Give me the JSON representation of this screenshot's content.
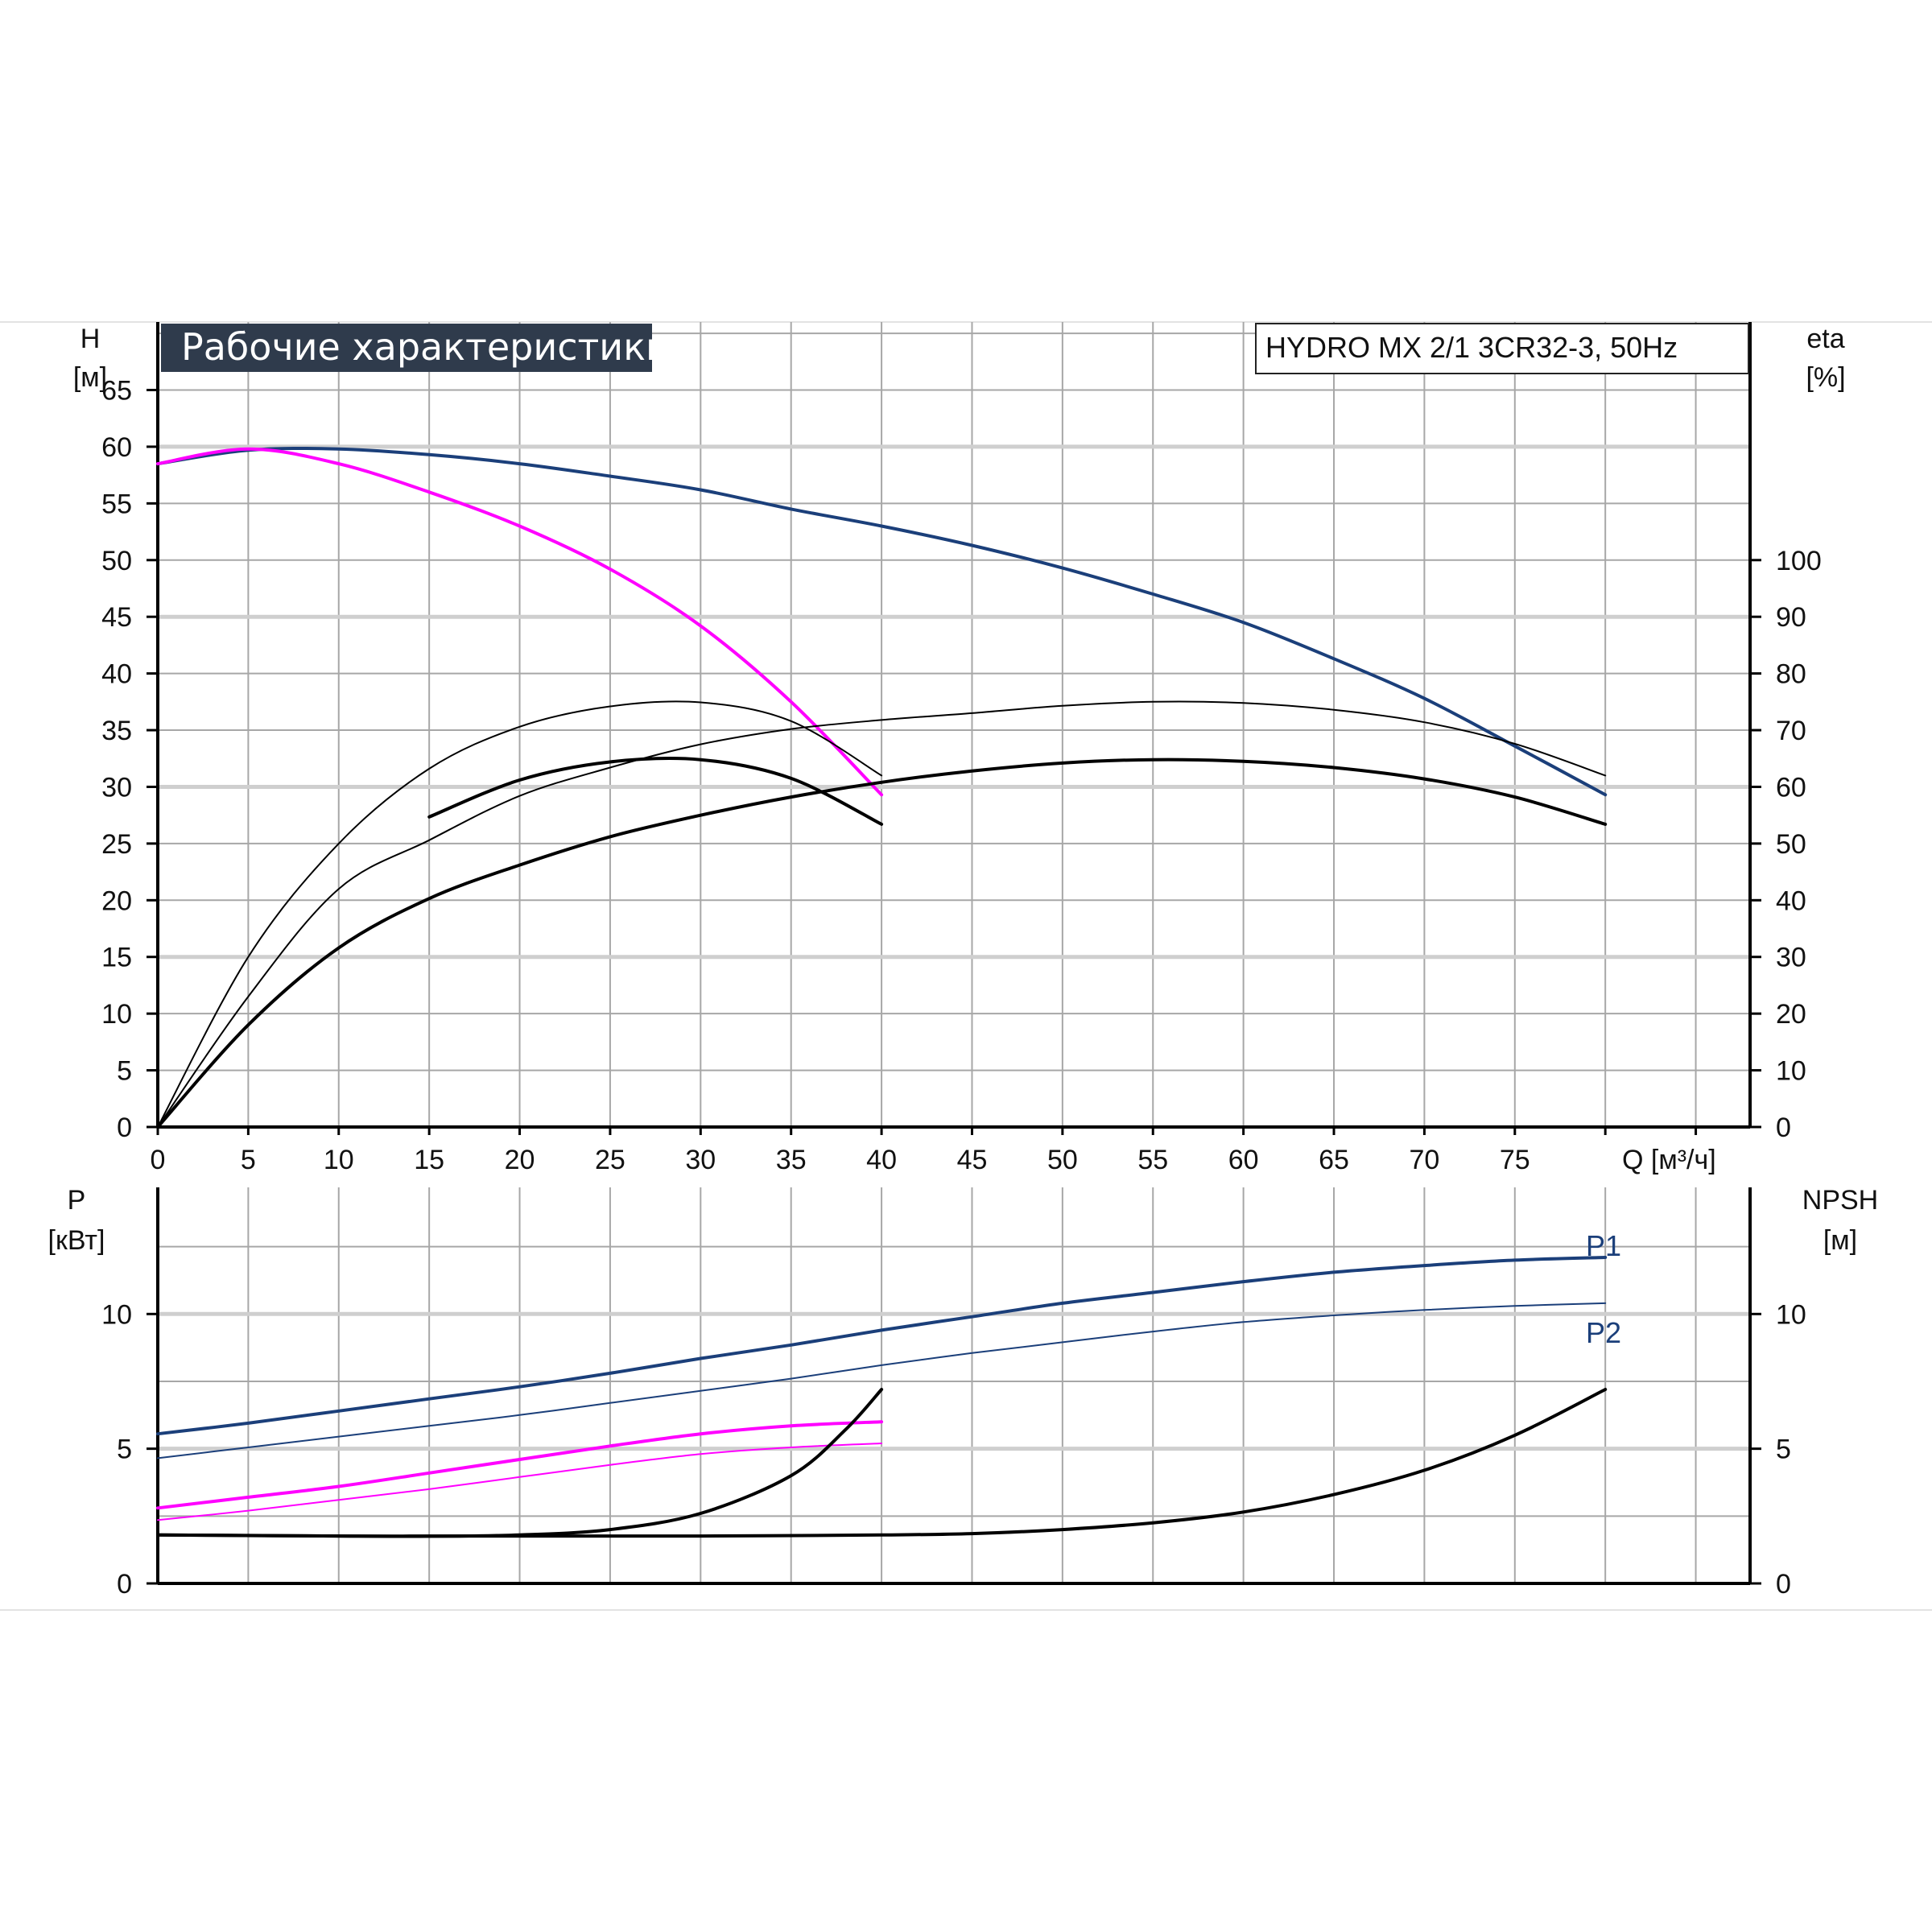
{
  "chart_data": [
    {
      "type": "line",
      "title": "Рабочие характеристики",
      "model": "HYDRO MX 2/1 3CR32-3, 50Hz",
      "ylabel_symbol": "H",
      "ylabel_unit": "[м]",
      "y2label_symbol": "eta",
      "y2label_unit": "[%]",
      "xlabel": "Q [м³/ч]",
      "xlim": [
        0,
        88
      ],
      "ylim": [
        0,
        71
      ],
      "y2lim": [
        0,
        142
      ],
      "x_ticks": [
        "0",
        "5",
        "10",
        "15",
        "20",
        "25",
        "30",
        "35",
        "40",
        "45",
        "50",
        "55",
        "60",
        "65",
        "70",
        "75"
      ],
      "y_ticks": [
        "0",
        "5",
        "10",
        "15",
        "20",
        "25",
        "30",
        "35",
        "40",
        "45",
        "50",
        "55",
        "60",
        "65"
      ],
      "y2_ticks": [
        "0",
        "10",
        "20",
        "30",
        "40",
        "50",
        "60",
        "70",
        "80",
        "90",
        "100"
      ],
      "grid": true,
      "colors": {
        "blue": "#1b3f7a",
        "magenta": "#ff00ff",
        "black": "#000000",
        "grid": "#a7a7a7",
        "grid_major": "#cfcfcf",
        "title_bg": "#2f3b4c"
      },
      "series": [
        {
          "axis": "H",
          "color": "#1b3f7a",
          "width": 4,
          "x": [
            0,
            5,
            10,
            15,
            20,
            25,
            30,
            35,
            40,
            45,
            50,
            55,
            60,
            65,
            70,
            75,
            80
          ],
          "y": [
            58.5,
            59.7,
            59.8,
            59.3,
            58.5,
            57.4,
            56.2,
            54.5,
            53,
            51.3,
            49.3,
            47,
            44.5,
            41.3,
            37.8,
            33.6,
            29.3
          ]
        },
        {
          "axis": "H",
          "color": "#ff00ff",
          "width": 4,
          "x": [
            0,
            5,
            10,
            15,
            20,
            25,
            30,
            35,
            40
          ],
          "y": [
            58.5,
            59.8,
            58.5,
            56,
            53,
            49.2,
            44.2,
            37.5,
            29.3
          ]
        },
        {
          "axis": "eta",
          "color": "#000000",
          "width": 2,
          "x": [
            0,
            5,
            10,
            15,
            20,
            25,
            30,
            35,
            40
          ],
          "y": [
            0,
            30,
            50,
            63.2,
            70.6,
            74.2,
            74.9,
            71.6,
            62
          ]
        },
        {
          "axis": "eta",
          "color": "#000000",
          "width": 4,
          "x": [
            15,
            20,
            25,
            30,
            35,
            40
          ],
          "y": [
            54.7,
            61.2,
            64.4,
            64.8,
            61.5,
            53.4
          ]
        },
        {
          "axis": "eta",
          "color": "#000000",
          "width": 2,
          "x": [
            0,
            5,
            10,
            15,
            20,
            25,
            30,
            35,
            40,
            45,
            50,
            55,
            60,
            65,
            70,
            75,
            80
          ],
          "y": [
            0,
            23,
            42,
            50.6,
            58.4,
            63.4,
            67.5,
            70.2,
            71.8,
            73,
            74.3,
            75,
            74.8,
            73.6,
            71.4,
            67.6,
            62
          ]
        },
        {
          "axis": "eta",
          "color": "#000000",
          "width": 4,
          "x": [
            0,
            5,
            10,
            15,
            20,
            25,
            30,
            35,
            40,
            45,
            50,
            55,
            60,
            65,
            70,
            75,
            80
          ],
          "y": [
            0,
            18,
            31.6,
            40.3,
            46.2,
            51.2,
            55,
            58.2,
            60.8,
            62.8,
            64.2,
            64.8,
            64.5,
            63.4,
            61.4,
            58.2,
            53.4
          ]
        }
      ]
    },
    {
      "type": "line",
      "ylabel_symbol": "P",
      "ylabel_unit": "[кВт]",
      "y2label_symbol": "NPSH",
      "y2label_unit": "[м]",
      "xlim": [
        0,
        88
      ],
      "ylim": [
        0,
        14.7
      ],
      "y2lim": [
        0,
        14.7
      ],
      "y_ticks": [
        "0",
        "5",
        "10"
      ],
      "y2_ticks": [
        "0",
        "5",
        "10"
      ],
      "grid": true,
      "series": [
        {
          "name": "P1",
          "axis": "P",
          "color": "#1b3f7a",
          "width": 4,
          "x": [
            0,
            5,
            10,
            15,
            20,
            25,
            30,
            35,
            40,
            45,
            50,
            55,
            60,
            65,
            70,
            75,
            80
          ],
          "y": [
            5.55,
            5.95,
            6.4,
            6.85,
            7.3,
            7.8,
            8.35,
            8.85,
            9.4,
            9.9,
            10.4,
            10.8,
            11.2,
            11.55,
            11.8,
            12,
            12.1
          ]
        },
        {
          "name": "P2",
          "axis": "P",
          "color": "#1b3f7a",
          "width": 2,
          "x": [
            0,
            5,
            10,
            15,
            20,
            25,
            30,
            35,
            40,
            45,
            50,
            55,
            60,
            65,
            70,
            75,
            80
          ],
          "y": [
            4.65,
            5.05,
            5.45,
            5.85,
            6.25,
            6.7,
            7.15,
            7.6,
            8.1,
            8.55,
            8.95,
            9.35,
            9.7,
            9.95,
            10.15,
            10.3,
            10.4
          ]
        },
        {
          "axis": "P",
          "color": "#ff00ff",
          "width": 4,
          "x": [
            0,
            5,
            10,
            15,
            20,
            25,
            30,
            35,
            40
          ],
          "y": [
            2.8,
            3.2,
            3.6,
            4.1,
            4.6,
            5.1,
            5.55,
            5.85,
            6.0
          ]
        },
        {
          "axis": "P",
          "color": "#ff00ff",
          "width": 2,
          "x": [
            0,
            5,
            10,
            15,
            20,
            25,
            30,
            35,
            40
          ],
          "y": [
            2.35,
            2.7,
            3.1,
            3.5,
            3.95,
            4.4,
            4.8,
            5.05,
            5.2
          ]
        },
        {
          "axis": "NPSH",
          "color": "#000000",
          "width": 4,
          "x": [
            0,
            5,
            10,
            15,
            20,
            25,
            30,
            35,
            38,
            40
          ],
          "y": [
            1.8,
            1.78,
            1.76,
            1.75,
            1.8,
            2.0,
            2.6,
            4.0,
            5.7,
            7.2
          ]
        },
        {
          "axis": "NPSH",
          "color": "#000000",
          "width": 4,
          "x": [
            0,
            10,
            20,
            30,
            40,
            45,
            50,
            55,
            60,
            65,
            70,
            75,
            80
          ],
          "y": [
            1.8,
            1.76,
            1.76,
            1.76,
            1.8,
            1.85,
            2.0,
            2.25,
            2.65,
            3.3,
            4.2,
            5.5,
            7.2
          ]
        }
      ]
    }
  ]
}
